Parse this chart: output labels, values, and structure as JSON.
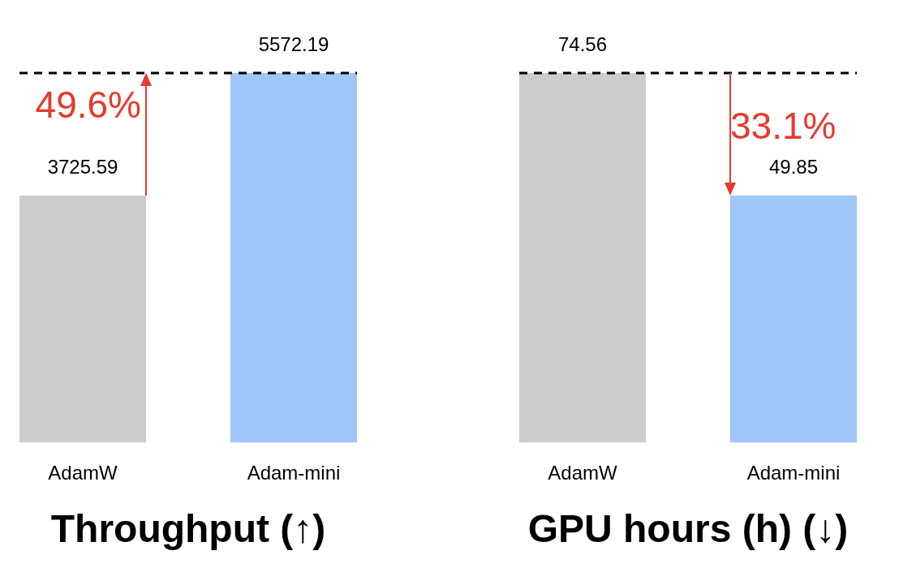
{
  "chart_data": [
    {
      "type": "bar",
      "title": "Throughput (↑)",
      "categories": [
        "AdamW",
        "Adam-mini"
      ],
      "values": [
        3725.59,
        5572.19
      ],
      "colors": [
        "#cccccc",
        "#a0c6f8"
      ],
      "data_labels": true,
      "grid": false,
      "legend": false,
      "ref_lines": [
        {
          "axis": "y",
          "value": 5572.19,
          "color": "#000000",
          "line_style": "dashed"
        }
      ],
      "annotations": [
        "49.6%"
      ]
    },
    {
      "type": "bar",
      "title": "GPU hours (h) (↓)",
      "categories": [
        "AdamW",
        "Adam-mini"
      ],
      "values": [
        74.56,
        49.85
      ],
      "colors": [
        "#cccccc",
        "#a0c6f8"
      ],
      "data_labels": true,
      "grid": false,
      "legend": false,
      "ref_lines": [
        {
          "axis": "y",
          "value": 74.56,
          "color": "#000000",
          "line_style": "dashed"
        }
      ],
      "annotations": [
        "33.1%"
      ]
    }
  ]
}
